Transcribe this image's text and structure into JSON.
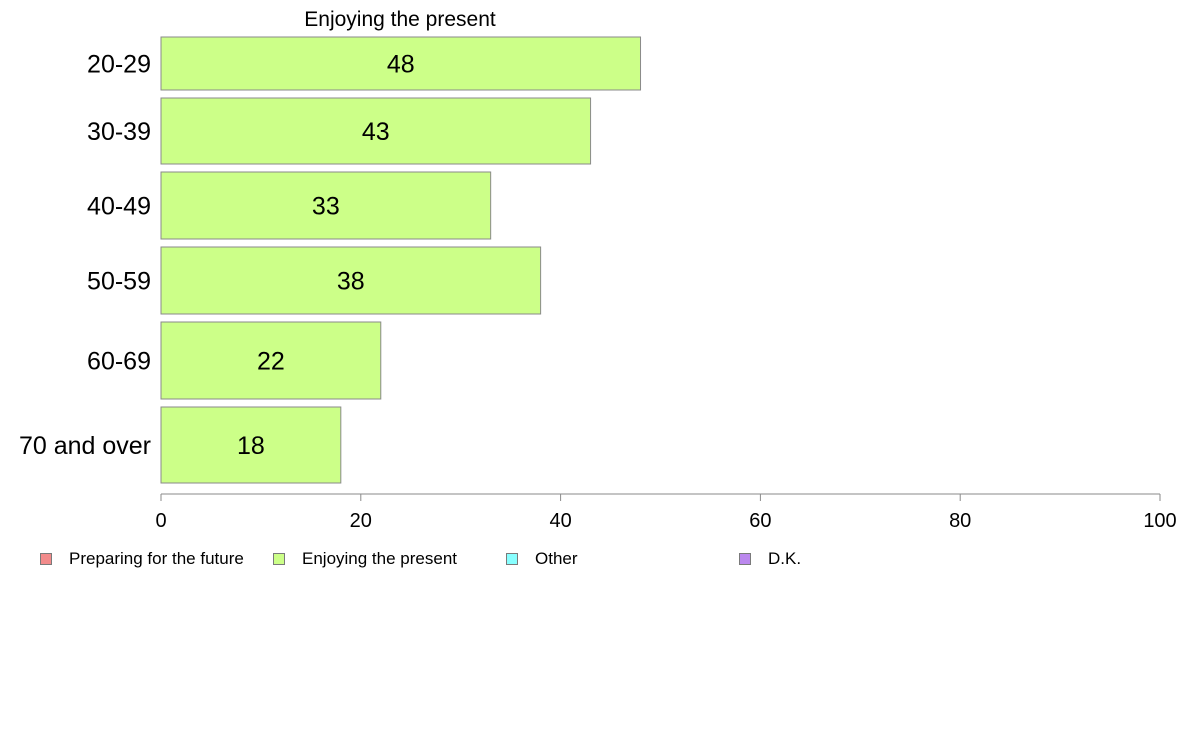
{
  "chart_data": {
    "type": "bar",
    "orientation": "horizontal",
    "title": "Enjoying the present",
    "categories": [
      "20-29",
      "30-39",
      "40-49",
      "50-59",
      "60-69",
      "70 and over"
    ],
    "series": [
      {
        "name": "Enjoying the present",
        "values": [
          48,
          43,
          33,
          38,
          22,
          18
        ],
        "color": "#ccff88"
      }
    ],
    "xlim": [
      0,
      100
    ],
    "x_ticks": [
      0,
      20,
      40,
      60,
      80,
      100
    ],
    "xlabel": "",
    "ylabel": "",
    "grid": false,
    "legend": {
      "placement": "bottom",
      "items": [
        {
          "label": "Preparing for the future",
          "color": "#f28b8b"
        },
        {
          "label": "Enjoying the present",
          "color": "#ccff88"
        },
        {
          "label": "Other",
          "color": "#88ffff"
        },
        {
          "label": "D.K.",
          "color": "#bb88ee"
        }
      ]
    }
  }
}
